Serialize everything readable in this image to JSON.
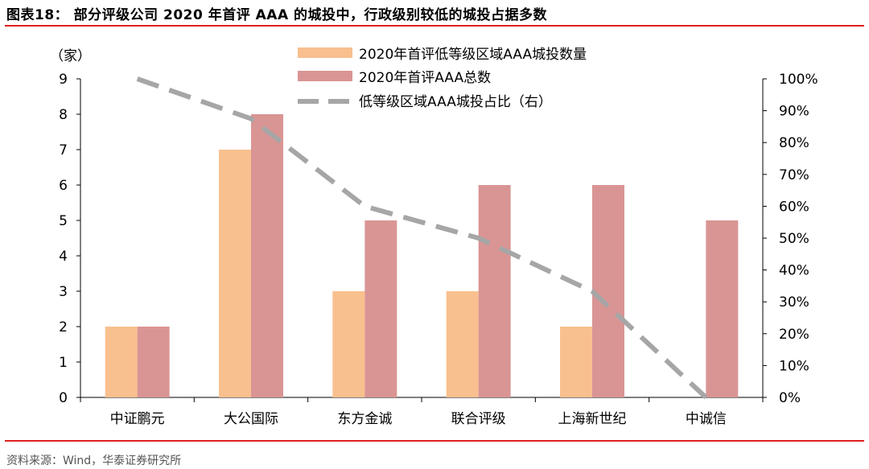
{
  "title": "图表18： 部分评级公司 2020 年首评 AAA 的城投中，行政级别较低的城投占据多数",
  "source": "资料来源：Wind，华泰证券研究所",
  "colors": {
    "low": "#F9C08F",
    "total": "#D99594",
    "ratio": "#A6A6A6",
    "rule": "#e02020"
  },
  "chart_data": {
    "type": "bar",
    "categories": [
      "中证鹏元",
      "大公国际",
      "东方金诚",
      "联合评级",
      "上海新世纪",
      "中诚信"
    ],
    "ylabel": "（家）",
    "ylim": [
      0,
      9
    ],
    "yticks": [
      "0",
      "1",
      "2",
      "3",
      "4",
      "5",
      "6",
      "7",
      "8",
      "9"
    ],
    "y2lim": [
      0,
      100
    ],
    "y2ticks": [
      "0%",
      "10%",
      "20%",
      "30%",
      "40%",
      "50%",
      "60%",
      "70%",
      "80%",
      "90%",
      "100%"
    ],
    "legend_position": "top-right",
    "grid": false,
    "series": [
      {
        "name": "2020年首评低等级区域AAA城投数量",
        "type": "bar",
        "axis": "left",
        "values": [
          2,
          7,
          3,
          3,
          2,
          0
        ]
      },
      {
        "name": "2020年首评AAA总数",
        "type": "bar",
        "axis": "left",
        "values": [
          2,
          8,
          5,
          6,
          6,
          5
        ]
      },
      {
        "name": "低等级区域AAA城投占比（右）",
        "type": "line-dashed",
        "axis": "right",
        "values": [
          100,
          87.5,
          60,
          50,
          33.3,
          0
        ]
      }
    ]
  }
}
